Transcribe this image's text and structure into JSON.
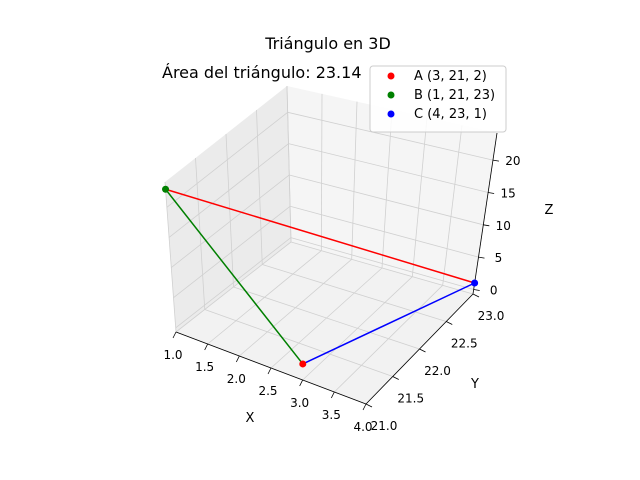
{
  "chart_data": {
    "type": "scatter",
    "projection": "3d",
    "title": "Triángulo en 3D",
    "annotation": "Área del triángulo: 23.14",
    "xlabel": "X",
    "ylabel": "Y",
    "zlabel": "Z",
    "xlim": [
      1.0,
      4.0
    ],
    "ylim": [
      21.0,
      23.0
    ],
    "zlim": [
      0,
      23
    ],
    "xticks": [
      "1.0",
      "1.5",
      "2.0",
      "2.5",
      "3.0",
      "3.5",
      "4.0"
    ],
    "yticks": [
      "21.0",
      "21.5",
      "22.0",
      "22.5",
      "23.0"
    ],
    "zticks": [
      "0",
      "5",
      "10",
      "15",
      "20"
    ],
    "grid": true,
    "legend_position": "top-right",
    "points": [
      {
        "name": "A (3, 21, 2)",
        "x": 3,
        "y": 21,
        "z": 2,
        "color": "#ff0000"
      },
      {
        "name": "B (1, 21, 23)",
        "x": 1,
        "y": 21,
        "z": 23,
        "color": "#008000"
      },
      {
        "name": "C (4, 23, 1)",
        "x": 4,
        "y": 23,
        "z": 1,
        "color": "#0000ff"
      }
    ],
    "edges": [
      {
        "from": 0,
        "to": 1,
        "color": "#008000"
      },
      {
        "from": 1,
        "to": 2,
        "color": "#ff0000"
      },
      {
        "from": 2,
        "to": 0,
        "color": "#0000ff"
      }
    ]
  }
}
